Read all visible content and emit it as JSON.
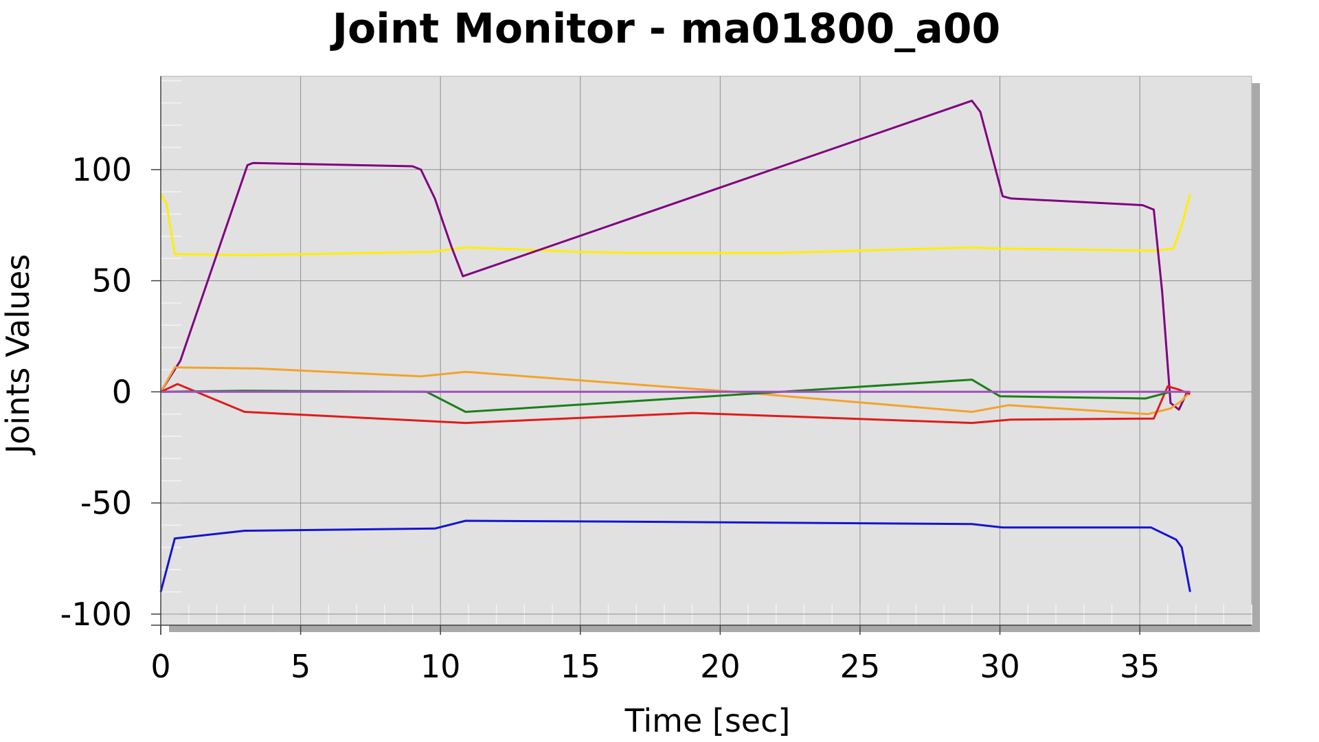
{
  "chart_data": {
    "type": "line",
    "title": "Joint Monitor - ma01800_a00",
    "xlabel": "Time [sec]",
    "ylabel": "Joints Values",
    "xlim": [
      0,
      39
    ],
    "ylim": [
      -105,
      142
    ],
    "x_ticks": [
      0,
      5,
      10,
      15,
      20,
      25,
      30,
      35
    ],
    "y_ticks": [
      -100,
      -50,
      0,
      50,
      100
    ],
    "grid": true,
    "legend": "none",
    "colors": {
      "plot_background": "#e1e1e1",
      "shadow": "#a9a9a9",
      "grid": "#8c8c8c"
    },
    "series": [
      {
        "color": "#ffee00",
        "points": [
          [
            0,
            89
          ],
          [
            0.2,
            85
          ],
          [
            0.5,
            62
          ],
          [
            3,
            61.5
          ],
          [
            9.7,
            63
          ],
          [
            10.9,
            65
          ],
          [
            15,
            63
          ],
          [
            17,
            62.5
          ],
          [
            22,
            62.5
          ],
          [
            29,
            65
          ],
          [
            30,
            64.5
          ],
          [
            35.5,
            63.5
          ],
          [
            36.2,
            64.5
          ],
          [
            36.5,
            75
          ],
          [
            36.8,
            89
          ]
        ]
      },
      {
        "color": "#800080",
        "points": [
          [
            0,
            0
          ],
          [
            0.7,
            14
          ],
          [
            3.1,
            102
          ],
          [
            3.3,
            103
          ],
          [
            9,
            101.5
          ],
          [
            9.3,
            100
          ],
          [
            9.8,
            87
          ],
          [
            10.4,
            65
          ],
          [
            10.8,
            52
          ],
          [
            29,
            131
          ],
          [
            29.3,
            126
          ],
          [
            30.1,
            88
          ],
          [
            30.4,
            87
          ],
          [
            35.1,
            84
          ],
          [
            35.5,
            82
          ],
          [
            35.8,
            45
          ],
          [
            36.1,
            -5
          ],
          [
            36.4,
            -8
          ],
          [
            36.7,
            0
          ]
        ]
      },
      {
        "color": "#f4a22a",
        "points": [
          [
            0,
            0
          ],
          [
            0.5,
            11
          ],
          [
            3.5,
            10.5
          ],
          [
            9.3,
            7
          ],
          [
            10.9,
            9
          ],
          [
            20.5,
            0
          ],
          [
            29,
            -9
          ],
          [
            30.3,
            -6
          ],
          [
            35.3,
            -10
          ],
          [
            36.1,
            -7.5
          ],
          [
            36.5,
            -4
          ],
          [
            36.8,
            0
          ]
        ]
      },
      {
        "color": "#e11a1a",
        "points": [
          [
            0,
            0
          ],
          [
            0.6,
            3.5
          ],
          [
            3,
            -9
          ],
          [
            10.9,
            -14
          ],
          [
            19,
            -9.5
          ],
          [
            29,
            -14
          ],
          [
            30.4,
            -12.5
          ],
          [
            35.5,
            -12
          ],
          [
            36,
            2.5
          ],
          [
            36.4,
            1
          ],
          [
            36.8,
            -1
          ]
        ]
      },
      {
        "color": "#1a7f1a",
        "points": [
          [
            0,
            0
          ],
          [
            3,
            0.5
          ],
          [
            9.5,
            0
          ],
          [
            10.9,
            -9
          ],
          [
            29,
            5.5
          ],
          [
            30,
            -2
          ],
          [
            35.2,
            -3
          ],
          [
            36.1,
            0
          ]
        ]
      },
      {
        "color": "#a04fc0",
        "points": [
          [
            0,
            0
          ],
          [
            36.8,
            0
          ]
        ]
      },
      {
        "color": "#1414d2",
        "points": [
          [
            0,
            -90
          ],
          [
            0.5,
            -66
          ],
          [
            3,
            -62.5
          ],
          [
            9.8,
            -61.5
          ],
          [
            10.9,
            -58
          ],
          [
            18,
            -58.5
          ],
          [
            29,
            -59.5
          ],
          [
            30.1,
            -61
          ],
          [
            35.4,
            -61
          ],
          [
            36.3,
            -66.5
          ],
          [
            36.5,
            -70
          ],
          [
            36.8,
            -90
          ]
        ]
      }
    ]
  }
}
